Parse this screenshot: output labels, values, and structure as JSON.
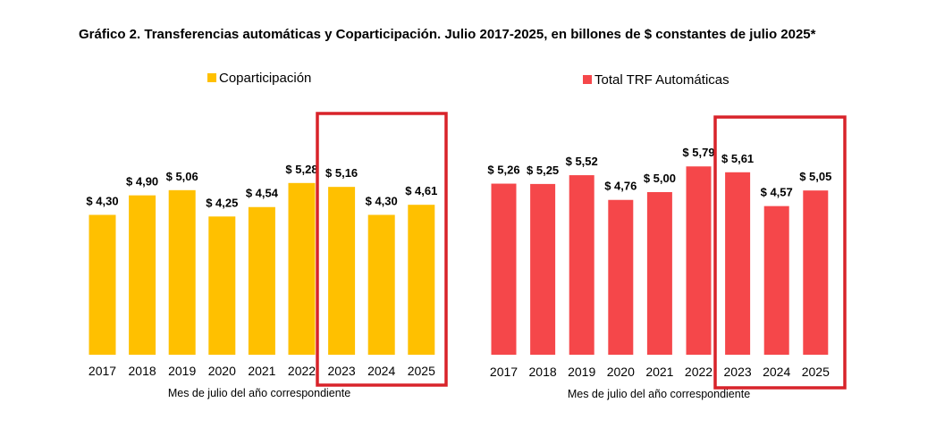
{
  "title": "Gráfico 2. Transferencias automáticas y Coparticipación. Julio 2017-2025, en billones de $ constantes de julio 2025*",
  "highlight_color": "#d8232a",
  "chart_data": [
    {
      "type": "bar",
      "legend": "Coparticipación",
      "color": "#ffc000",
      "xlabel": "Mes de julio del año correspondiente",
      "ylabel": "",
      "ylim": [
        0,
        6
      ],
      "grid": false,
      "legend_position": "top-center",
      "categories": [
        "2017",
        "2018",
        "2019",
        "2020",
        "2021",
        "2022",
        "2023",
        "2024",
        "2025"
      ],
      "values": [
        4.3,
        4.9,
        5.06,
        4.25,
        4.54,
        5.28,
        5.16,
        4.3,
        4.61
      ],
      "value_labels": [
        "$ 4,30",
        "$ 4,90",
        "$ 5,06",
        "$ 4,25",
        "$ 4,54",
        "$ 5,28",
        "$ 5,16",
        "$ 4,30",
        "$ 4,61"
      ],
      "highlighted_categories": [
        "2023",
        "2024",
        "2025"
      ]
    },
    {
      "type": "bar",
      "legend": "Total TRF Automáticas",
      "color": "#f5474a",
      "xlabel": "Mes de julio del año correspondiente",
      "ylabel": "",
      "ylim": [
        0,
        6
      ],
      "grid": false,
      "legend_position": "top-center",
      "categories": [
        "2017",
        "2018",
        "2019",
        "2020",
        "2021",
        "2022",
        "2023",
        "2024",
        "2025"
      ],
      "values": [
        5.26,
        5.25,
        5.52,
        4.76,
        5.0,
        5.79,
        5.61,
        4.57,
        5.05
      ],
      "value_labels": [
        "$ 5,26",
        "$ 5,25",
        "$ 5,52",
        "$ 4,76",
        "$ 5,00",
        "$ 5,79",
        "$ 5,61",
        "$ 4,57",
        "$ 5,05"
      ],
      "highlighted_categories": [
        "2023",
        "2024",
        "2025"
      ]
    }
  ]
}
